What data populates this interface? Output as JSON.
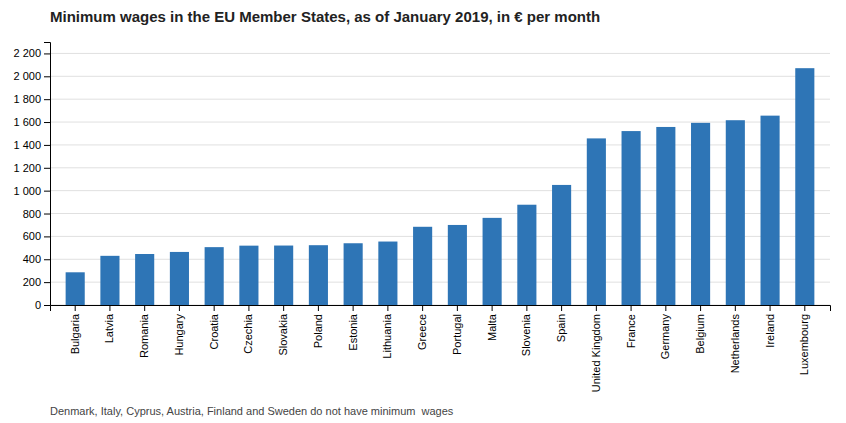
{
  "chart_data": {
    "type": "bar",
    "title": "Minimum wages in the EU Member States, as of January 2019, in € per month",
    "annotation": "Denmark, Italy, Cyprus, Austria, Finland and Sweden do not have minimum  wages",
    "categories": [
      "Bulgaria",
      "Latvia",
      "Romania",
      "Hungary",
      "Croatia",
      "Czechia",
      "Slovakia",
      "Poland",
      "Estonia",
      "Lithuania",
      "Greece",
      "Portugal",
      "Malta",
      "Slovenia",
      "Spain",
      "United Kingdom",
      "France",
      "Germany",
      "Belgium",
      "Netherlands",
      "Ireland",
      "Luxembourg"
    ],
    "values": [
      286,
      430,
      446,
      464,
      506,
      519,
      520,
      523,
      540,
      555,
      684,
      700,
      762,
      877,
      1050,
      1457,
      1521,
      1557,
      1593,
      1616,
      1656,
      2071
    ],
    "color": "#2E75B6",
    "ylim": [
      0,
      2300
    ],
    "yticks": [
      0,
      200,
      400,
      600,
      800,
      {
        "value": 1000,
        "label": "1 000"
      },
      {
        "value": 1200,
        "label": "1 200"
      },
      {
        "value": 1400,
        "label": "1 400"
      },
      {
        "value": 1600,
        "label": "1 600"
      },
      {
        "value": 1800,
        "label": "1 800"
      },
      {
        "value": 2000,
        "label": "2 000"
      },
      {
        "value": 2200,
        "label": "2 200"
      }
    ],
    "grid": true
  }
}
